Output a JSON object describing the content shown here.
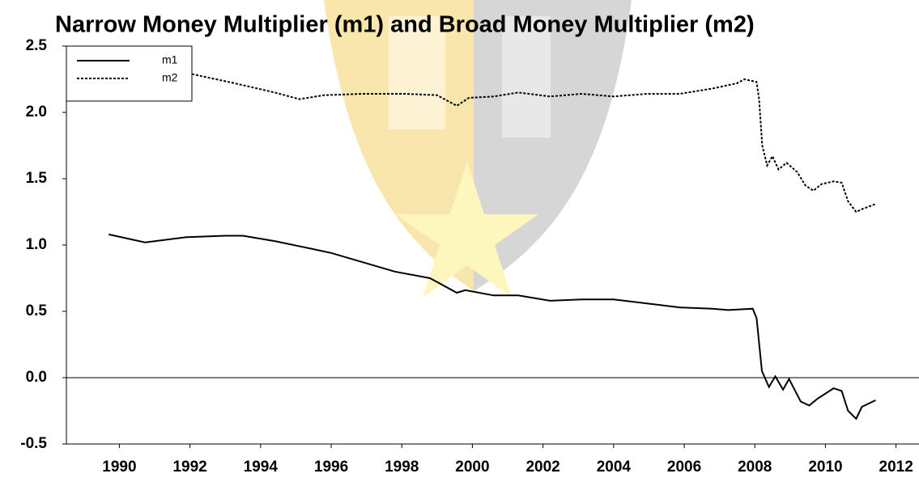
{
  "chart_data": {
    "type": "line",
    "title": "Narrow Money Multiplier (m1) and Broad Money Multiplier (m2)",
    "xlim": [
      1988.5,
      2012.65
    ],
    "xticks": [
      1990,
      1992,
      1994,
      1996,
      1998,
      2000,
      2002,
      2004,
      2006,
      2008,
      2010,
      2012
    ],
    "ylim": [
      -0.5,
      2.5
    ],
    "yticks": [
      {
        "value": 2.5,
        "label": "2.5"
      },
      {
        "value": 2.0,
        "label": "2.0"
      },
      {
        "value": 1.5,
        "label": "1.5"
      },
      {
        "value": 1.0,
        "label": "1.0"
      },
      {
        "value": 0.5,
        "label": "0.5"
      },
      {
        "value": 0.0,
        "label": "0.0"
      },
      -0.5
    ],
    "legend": "upper left",
    "series": [
      {
        "name": "m1",
        "color": "#000000",
        "dash": "solid",
        "x": [
          1989.7,
          1990.73,
          1991.9,
          1993.0,
          1993.5,
          1994.4,
          1995.3,
          1996.0,
          1996.9,
          1997.8,
          1998.8,
          1999.56,
          1999.8,
          2000.6,
          2001.3,
          2002.2,
          2003.1,
          2004.0,
          2004.95,
          2005.87,
          2006.8,
          2007.25,
          2007.94,
          2008.05,
          2008.2,
          2008.4,
          2008.58,
          2008.8,
          2008.97,
          2009.3,
          2009.54,
          2009.77,
          2010.23,
          2010.46,
          2010.64,
          2010.87,
          2011.03,
          2011.42
        ],
        "values": [
          1.08,
          1.02,
          1.06,
          1.07,
          1.07,
          1.03,
          0.98,
          0.94,
          0.87,
          0.8,
          0.75,
          0.64,
          0.66,
          0.62,
          0.62,
          0.58,
          0.59,
          0.59,
          0.56,
          0.53,
          0.52,
          0.51,
          0.52,
          0.45,
          0.05,
          -0.07,
          0.01,
          -0.09,
          -0.01,
          -0.18,
          -0.21,
          -0.16,
          -0.08,
          -0.1,
          -0.25,
          -0.31,
          -0.22,
          -0.17
        ]
      },
      {
        "name": "m2",
        "color": "#000000",
        "dash": "dotted",
        "x": [
          1989.7,
          1992.04,
          1993.26,
          1994.4,
          1995.1,
          1995.8,
          1996.9,
          1998.1,
          1999.0,
          1999.56,
          1999.9,
          2000.6,
          2001.3,
          2002.2,
          2003.1,
          2004.0,
          2004.95,
          2005.87,
          2006.8,
          2007.5,
          2007.7,
          2008.05,
          2008.12,
          2008.21,
          2008.35,
          2008.5,
          2008.67,
          2008.9,
          2009.2,
          2009.43,
          2009.66,
          2009.89,
          2010.23,
          2010.46,
          2010.64,
          2010.87,
          2011.03,
          2011.42
        ],
        "values": [
          2.42,
          2.29,
          2.22,
          2.15,
          2.1,
          2.13,
          2.14,
          2.14,
          2.13,
          2.05,
          2.11,
          2.12,
          2.15,
          2.12,
          2.14,
          2.12,
          2.14,
          2.14,
          2.18,
          2.22,
          2.25,
          2.23,
          2.1,
          1.75,
          1.6,
          1.67,
          1.57,
          1.62,
          1.55,
          1.45,
          1.41,
          1.46,
          1.48,
          1.47,
          1.33,
          1.25,
          1.27,
          1.31
        ]
      }
    ]
  }
}
